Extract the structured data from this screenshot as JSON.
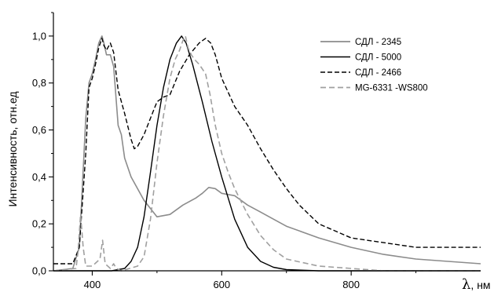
{
  "chart_data": {
    "type": "line",
    "xlabel_symbol": "λ",
    "xlabel_unit": ", нм",
    "ylabel": "Интенсивность, отн.ед",
    "xlim": [
      340,
      1000
    ],
    "ylim": [
      0,
      1.1
    ],
    "grid": false,
    "legend_position": "top-right",
    "x_ticks": [
      400,
      600,
      800
    ],
    "x_tick_labels": [
      "400",
      "600",
      "800"
    ],
    "y_ticks": [
      0,
      0.2,
      0.4,
      0.6,
      0.8,
      1.0
    ],
    "y_tick_labels": [
      "0,0",
      "0,2",
      "0,4",
      "0,6",
      "0,8",
      "1,0"
    ],
    "series": [
      {
        "name": "СДЛ - 2345",
        "color": "#8c8c8c",
        "dash": "solid",
        "x": [
          340,
          370,
          380,
          390,
          395,
          400,
          405,
          410,
          415,
          418,
          422,
          428,
          433,
          440,
          445,
          450,
          460,
          480,
          500,
          520,
          540,
          560,
          570,
          580,
          590,
          600,
          620,
          640,
          660,
          680,
          700,
          750,
          800,
          850,
          900,
          1000
        ],
        "y": [
          0.0,
          0.01,
          0.1,
          0.65,
          0.8,
          0.84,
          0.9,
          0.97,
          1.0,
          0.97,
          0.92,
          0.92,
          0.87,
          0.62,
          0.58,
          0.48,
          0.4,
          0.3,
          0.23,
          0.24,
          0.28,
          0.31,
          0.33,
          0.355,
          0.35,
          0.33,
          0.32,
          0.28,
          0.25,
          0.22,
          0.19,
          0.14,
          0.1,
          0.07,
          0.05,
          0.03
        ]
      },
      {
        "name": "СДЛ - 5000",
        "color": "#000000",
        "dash": "solid",
        "x": [
          340,
          430,
          450,
          460,
          470,
          480,
          490,
          500,
          510,
          520,
          530,
          538,
          545,
          555,
          570,
          585,
          600,
          620,
          640,
          660,
          680,
          700,
          750,
          800,
          850,
          900,
          1000
        ],
        "y": [
          0.0,
          0.0,
          0.01,
          0.04,
          0.1,
          0.23,
          0.42,
          0.62,
          0.78,
          0.9,
          0.97,
          1.0,
          0.97,
          0.88,
          0.72,
          0.55,
          0.4,
          0.22,
          0.1,
          0.04,
          0.015,
          0.005,
          0.0,
          0.0,
          0.0,
          0.0,
          0.0
        ]
      },
      {
        "name": "СДЛ - 2466",
        "color": "#000000",
        "dash": "6,3",
        "x": [
          340,
          370,
          380,
          390,
          395,
          400,
          405,
          410,
          415,
          418,
          422,
          428,
          433,
          440,
          450,
          460,
          465,
          470,
          480,
          490,
          500,
          510,
          520,
          535,
          550,
          565,
          575,
          583,
          590,
          600,
          620,
          640,
          660,
          680,
          700,
          720,
          750,
          800,
          850,
          900,
          1000
        ],
        "y": [
          0.03,
          0.03,
          0.1,
          0.5,
          0.78,
          0.82,
          0.88,
          0.95,
          0.99,
          0.96,
          0.94,
          0.97,
          0.93,
          0.77,
          0.67,
          0.56,
          0.52,
          0.53,
          0.58,
          0.65,
          0.72,
          0.74,
          0.75,
          0.85,
          0.92,
          0.97,
          0.99,
          0.97,
          0.92,
          0.82,
          0.7,
          0.62,
          0.52,
          0.43,
          0.35,
          0.28,
          0.2,
          0.14,
          0.12,
          0.1,
          0.1
        ]
      },
      {
        "name": "MG-6331 -WS800",
        "color": "#a0a0a0",
        "dash": "7,4",
        "x": [
          340,
          375,
          378,
          382,
          386,
          390,
          400,
          412,
          416,
          420,
          428,
          433,
          437,
          445,
          470,
          480,
          490,
          500,
          510,
          520,
          528,
          535,
          540,
          544,
          548,
          553,
          558,
          565,
          575,
          582,
          590,
          600,
          610,
          620,
          640,
          660,
          680,
          700,
          750,
          800,
          850,
          900,
          1000
        ],
        "y": [
          0.0,
          0.01,
          0.08,
          0.24,
          0.1,
          0.02,
          0.02,
          0.05,
          0.13,
          0.03,
          0.01,
          0.03,
          0.01,
          0.0,
          0.02,
          0.06,
          0.22,
          0.46,
          0.66,
          0.82,
          0.9,
          0.94,
          0.98,
          1.0,
          0.95,
          0.92,
          0.9,
          0.88,
          0.84,
          0.75,
          0.62,
          0.5,
          0.42,
          0.35,
          0.24,
          0.15,
          0.09,
          0.05,
          0.02,
          0.01,
          0.0,
          0.0,
          0.0
        ]
      }
    ]
  }
}
